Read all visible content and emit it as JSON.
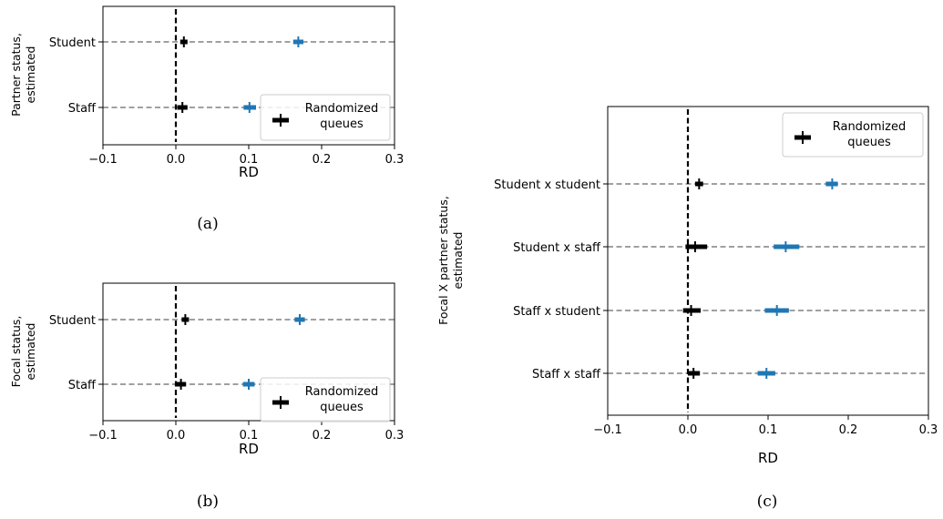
{
  "chart_data": [
    {
      "id": "a",
      "type": "scatter",
      "caption": "(a)",
      "ylabel": [
        "Partner status,",
        "estimated"
      ],
      "xlabel": "RD",
      "xlim": [
        -0.1,
        0.3
      ],
      "xticks": [
        -0.1,
        0.0,
        0.1,
        0.2,
        0.3
      ],
      "xtick_labels": [
        "−0.1",
        "0.0",
        "0.1",
        "0.2",
        "0.3"
      ],
      "categories": [
        "Student",
        "Staff"
      ],
      "legend": {
        "label": [
          "Randomized",
          "queues"
        ],
        "position": "lower-right"
      },
      "series": [
        {
          "color": "#000000",
          "points": [
            {
              "category": "Student",
              "x": 0.011,
              "lo": 0.006,
              "hi": 0.016
            },
            {
              "category": "Staff",
              "x": 0.009,
              "lo": 0.002,
              "hi": 0.016
            }
          ]
        },
        {
          "color": "#1f77b4",
          "points": [
            {
              "category": "Student",
              "x": 0.168,
              "lo": 0.161,
              "hi": 0.175
            },
            {
              "category": "Staff",
              "x": 0.101,
              "lo": 0.093,
              "hi": 0.11
            }
          ]
        }
      ],
      "reference_line_x": 0.0
    },
    {
      "id": "b",
      "type": "scatter",
      "caption": "(b)",
      "ylabel": [
        "Focal status,",
        "estimated"
      ],
      "xlabel": "RD",
      "xlim": [
        -0.1,
        0.3
      ],
      "xticks": [
        -0.1,
        0.0,
        0.1,
        0.2,
        0.3
      ],
      "xtick_labels": [
        "−0.1",
        "0.0",
        "0.1",
        "0.2",
        "0.3"
      ],
      "categories": [
        "Student",
        "Staff"
      ],
      "legend": {
        "label": [
          "Randomized",
          "queues"
        ],
        "position": "lower-right"
      },
      "series": [
        {
          "color": "#000000",
          "points": [
            {
              "category": "Student",
              "x": 0.013,
              "lo": 0.008,
              "hi": 0.018
            },
            {
              "category": "Staff",
              "x": 0.007,
              "lo": 0.001,
              "hi": 0.014
            }
          ]
        },
        {
          "color": "#1f77b4",
          "points": [
            {
              "category": "Student",
              "x": 0.17,
              "lo": 0.163,
              "hi": 0.177
            },
            {
              "category": "Staff",
              "x": 0.1,
              "lo": 0.092,
              "hi": 0.108
            }
          ]
        }
      ],
      "reference_line_x": 0.0
    },
    {
      "id": "c",
      "type": "scatter",
      "caption": "(c)",
      "ylabel": [
        "Focal X partner status,",
        "estimated"
      ],
      "xlabel": "RD",
      "xlim": [
        -0.1,
        0.3
      ],
      "xticks": [
        -0.1,
        0.0,
        0.1,
        0.2,
        0.3
      ],
      "xtick_labels": [
        "−0.1",
        "0.0",
        "0.1",
        "0.2",
        "0.3"
      ],
      "categories": [
        "Student x student",
        "Student x staff",
        "Staff x student",
        "Staff x staff"
      ],
      "legend": {
        "label": [
          "Randomized",
          "queues"
        ],
        "position": "upper-right"
      },
      "series": [
        {
          "color": "#000000",
          "points": [
            {
              "category": "Student x student",
              "x": 0.014,
              "lo": 0.009,
              "hi": 0.019
            },
            {
              "category": "Student x staff",
              "x": 0.009,
              "lo": -0.003,
              "hi": 0.024
            },
            {
              "category": "Staff x student",
              "x": 0.004,
              "lo": -0.006,
              "hi": 0.016
            },
            {
              "category": "Staff x staff",
              "x": 0.007,
              "lo": 0.0,
              "hi": 0.015
            }
          ]
        },
        {
          "color": "#1f77b4",
          "points": [
            {
              "category": "Student x student",
              "x": 0.18,
              "lo": 0.172,
              "hi": 0.187
            },
            {
              "category": "Student x staff",
              "x": 0.122,
              "lo": 0.107,
              "hi": 0.139
            },
            {
              "category": "Staff x student",
              "x": 0.111,
              "lo": 0.096,
              "hi": 0.126
            },
            {
              "category": "Staff x staff",
              "x": 0.098,
              "lo": 0.087,
              "hi": 0.109
            }
          ]
        }
      ],
      "reference_line_x": 0.0
    }
  ]
}
